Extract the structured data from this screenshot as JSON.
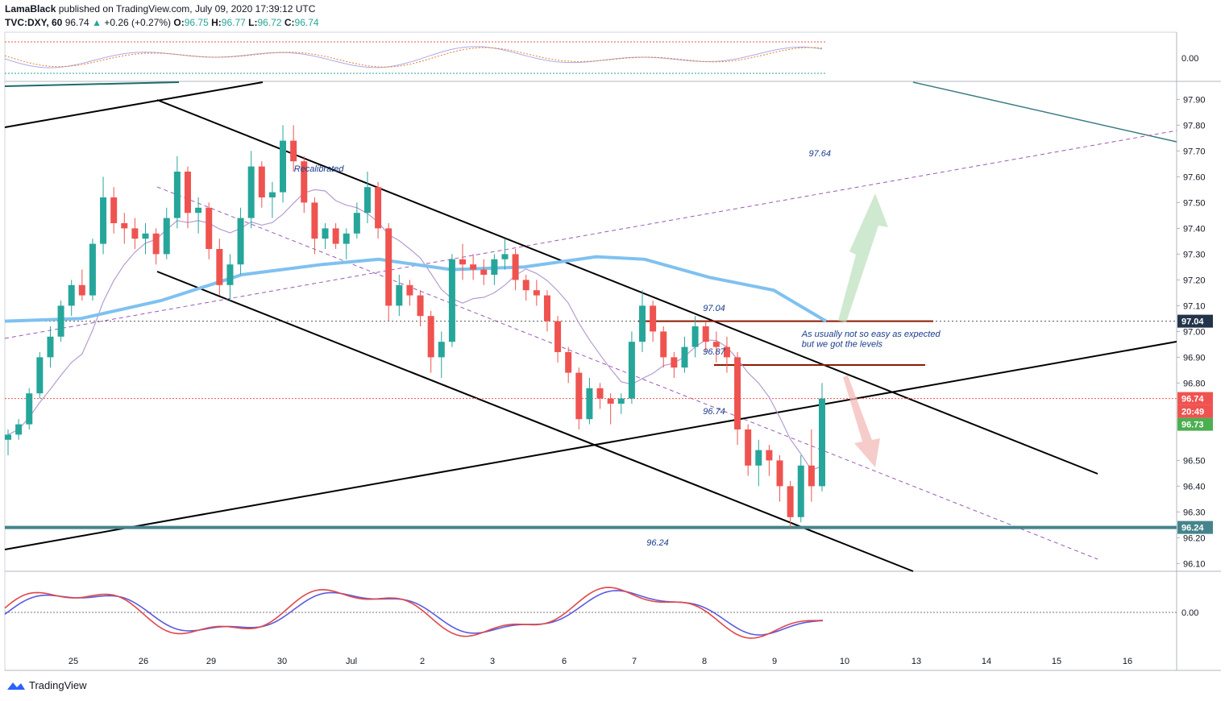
{
  "header": {
    "author": "LamaBlack",
    "published": "published on TradingView.com, July 09, 2020 17:39:12 UTC",
    "symbol": "TVC:DXY, 60",
    "last": "96.74",
    "change_arrow": "▲",
    "change": "+0.26 (+0.27%)",
    "o_label": "O:",
    "o": "96.75",
    "h_label": "H:",
    "h": "96.77",
    "l_label": "L:",
    "l": "96.72",
    "c_label": "C:",
    "c": "96.74"
  },
  "footer": {
    "brand": "TradingView",
    "logo_icon": "tradingview-logo-icon"
  },
  "colors": {
    "up": "#26a69a",
    "down": "#ef5350",
    "ma_blue": "#7fc1f0",
    "ma_purple": "#b79ccf",
    "support": "#46848c",
    "resistance": "#8b1a00",
    "price_tag": "#ef5350",
    "timer_tag": "#ef5350",
    "ask_tag": "#4caf50",
    "dark_tag": "#22344a",
    "note": "#1a3c8c"
  },
  "chart_data": {
    "type": "candlestick",
    "title": "",
    "symbol": "TVC:DXY",
    "timeframe": "60",
    "price_axis_ticks": [
      "97.90",
      "97.80",
      "97.70",
      "97.60",
      "97.50",
      "97.40",
      "97.30",
      "97.20",
      "97.10",
      "97.00",
      "96.90",
      "96.80",
      "96.50",
      "96.40",
      "96.30",
      "96.20",
      "96.10"
    ],
    "ylim": [
      96.07,
      97.97
    ],
    "x_ticks": [
      "25",
      "26",
      "29",
      "30",
      "Jul",
      "2",
      "3",
      "6",
      "7",
      "8",
      "9",
      "10",
      "13",
      "14",
      "15",
      "16"
    ],
    "osc_top_tick": "0.00",
    "osc_bottom_tick": "0.00",
    "price_tags": [
      {
        "label": "97.04",
        "value": 97.04,
        "kind": "dark"
      },
      {
        "label": "96.74",
        "value": 96.74,
        "kind": "price"
      },
      {
        "label": "20:49",
        "value": 96.69,
        "kind": "timer"
      },
      {
        "label": "96.73",
        "value": 96.64,
        "kind": "ask"
      },
      {
        "label": "96.24",
        "value": 96.24,
        "kind": "support"
      }
    ],
    "annotations": [
      {
        "text": "Recalibrated",
        "x": 4.1,
        "y": 97.62
      },
      {
        "text": "97.64",
        "x": 11.4,
        "y": 97.68
      },
      {
        "text": "97.04",
        "x": 9.9,
        "y": 97.08
      },
      {
        "text": "As usually not so easy as expected",
        "x": 11.3,
        "y": 96.98
      },
      {
        "text": "but we got the levels",
        "x": 11.3,
        "y": 96.94
      },
      {
        "text": "96.87",
        "x": 9.9,
        "y": 96.91
      },
      {
        "text": "96.74",
        "x": 9.9,
        "y": 96.68
      },
      {
        "text": "96.24",
        "x": 9.1,
        "y": 96.17
      }
    ],
    "levels": [
      {
        "name": "resistance 97.04",
        "value": 97.04,
        "x_from": 7.05,
        "x_to": 11.3
      },
      {
        "name": "resistance 96.87",
        "value": 96.87,
        "x_from": 8.1,
        "x_to": 11.3
      },
      {
        "name": "support 96.24",
        "value": 96.24
      },
      {
        "name": "current price",
        "value": 96.74
      }
    ],
    "candles": [
      [
        96.58,
        96.62,
        96.52,
        96.6
      ],
      [
        96.6,
        96.66,
        96.58,
        96.64
      ],
      [
        96.64,
        96.78,
        96.62,
        96.76
      ],
      [
        96.76,
        96.92,
        96.74,
        96.9
      ],
      [
        96.9,
        97.02,
        96.86,
        96.98
      ],
      [
        96.98,
        97.12,
        96.96,
        97.1
      ],
      [
        97.1,
        97.2,
        97.06,
        97.18
      ],
      [
        97.18,
        97.24,
        97.12,
        97.14
      ],
      [
        97.14,
        97.36,
        97.12,
        97.34
      ],
      [
        97.34,
        97.6,
        97.3,
        97.52
      ],
      [
        97.52,
        97.56,
        97.38,
        97.42
      ],
      [
        97.42,
        97.46,
        97.34,
        97.4
      ],
      [
        97.4,
        97.44,
        97.32,
        97.36
      ],
      [
        97.36,
        97.42,
        97.3,
        97.38
      ],
      [
        97.38,
        97.4,
        97.26,
        97.3
      ],
      [
        97.3,
        97.48,
        97.28,
        97.44
      ],
      [
        97.44,
        97.68,
        97.4,
        97.62
      ],
      [
        97.62,
        97.64,
        97.4,
        97.46
      ],
      [
        97.46,
        97.52,
        97.38,
        97.48
      ],
      [
        97.48,
        97.5,
        97.28,
        97.32
      ],
      [
        97.32,
        97.36,
        97.14,
        97.18
      ],
      [
        97.18,
        97.3,
        97.12,
        97.26
      ],
      [
        97.26,
        97.48,
        97.22,
        97.44
      ],
      [
        97.44,
        97.7,
        97.4,
        97.64
      ],
      [
        97.64,
        97.66,
        97.48,
        97.52
      ],
      [
        97.52,
        97.58,
        97.44,
        97.54
      ],
      [
        97.54,
        97.8,
        97.5,
        97.74
      ],
      [
        97.74,
        97.8,
        97.62,
        97.66
      ],
      [
        97.66,
        97.68,
        97.46,
        97.5
      ],
      [
        97.5,
        97.52,
        97.3,
        97.36
      ],
      [
        97.36,
        97.42,
        97.32,
        97.4
      ],
      [
        97.4,
        97.42,
        97.32,
        97.34
      ],
      [
        97.34,
        97.4,
        97.28,
        97.38
      ],
      [
        97.38,
        97.5,
        97.36,
        97.46
      ],
      [
        97.46,
        97.62,
        97.42,
        97.56
      ],
      [
        97.56,
        97.58,
        97.36,
        97.4
      ],
      [
        97.4,
        97.42,
        97.04,
        97.1
      ],
      [
        97.1,
        97.22,
        97.06,
        97.18
      ],
      [
        97.18,
        97.2,
        97.1,
        97.14
      ],
      [
        97.14,
        97.16,
        97.02,
        97.06
      ],
      [
        97.06,
        97.08,
        96.84,
        96.9
      ],
      [
        96.9,
        97.0,
        96.82,
        96.96
      ],
      [
        96.96,
        97.3,
        96.94,
        97.28
      ],
      [
        97.28,
        97.34,
        97.2,
        97.26
      ],
      [
        97.26,
        97.3,
        97.2,
        97.24
      ],
      [
        97.24,
        97.28,
        97.18,
        97.22
      ],
      [
        97.22,
        97.3,
        97.18,
        97.28
      ],
      [
        97.28,
        97.36,
        97.24,
        97.3
      ],
      [
        97.3,
        97.32,
        97.16,
        97.2
      ],
      [
        97.2,
        97.22,
        97.12,
        97.16
      ],
      [
        97.16,
        97.2,
        97.1,
        97.14
      ],
      [
        97.14,
        97.16,
        97.0,
        97.04
      ],
      [
        97.04,
        97.06,
        96.88,
        96.92
      ],
      [
        96.92,
        96.94,
        96.8,
        96.84
      ],
      [
        96.84,
        96.86,
        96.62,
        96.66
      ],
      [
        96.66,
        96.82,
        96.64,
        96.78
      ],
      [
        96.78,
        96.8,
        96.7,
        96.74
      ],
      [
        96.74,
        96.76,
        96.64,
        96.72
      ],
      [
        96.72,
        96.76,
        96.68,
        96.74
      ],
      [
        96.74,
        97.0,
        96.72,
        96.96
      ],
      [
        96.96,
        97.16,
        96.92,
        97.1
      ],
      [
        97.1,
        97.12,
        96.96,
        97.0
      ],
      [
        97.0,
        97.02,
        96.86,
        96.9
      ],
      [
        96.9,
        96.92,
        96.82,
        96.86
      ],
      [
        96.86,
        96.98,
        96.84,
        96.94
      ],
      [
        96.94,
        97.06,
        96.9,
        97.02
      ],
      [
        97.02,
        97.04,
        96.92,
        96.96
      ],
      [
        96.96,
        97.0,
        96.88,
        96.94
      ],
      [
        96.94,
        96.98,
        96.84,
        96.9
      ],
      [
        96.9,
        96.92,
        96.56,
        96.62
      ],
      [
        96.62,
        96.64,
        96.44,
        96.48
      ],
      [
        96.48,
        96.58,
        96.4,
        96.54
      ],
      [
        96.54,
        96.56,
        96.44,
        96.5
      ],
      [
        96.5,
        96.52,
        96.34,
        96.4
      ],
      [
        96.4,
        96.42,
        96.24,
        96.28
      ],
      [
        96.28,
        96.52,
        96.26,
        96.48
      ],
      [
        96.48,
        96.62,
        96.34,
        96.4
      ],
      [
        96.4,
        96.8,
        96.38,
        96.74
      ]
    ]
  }
}
